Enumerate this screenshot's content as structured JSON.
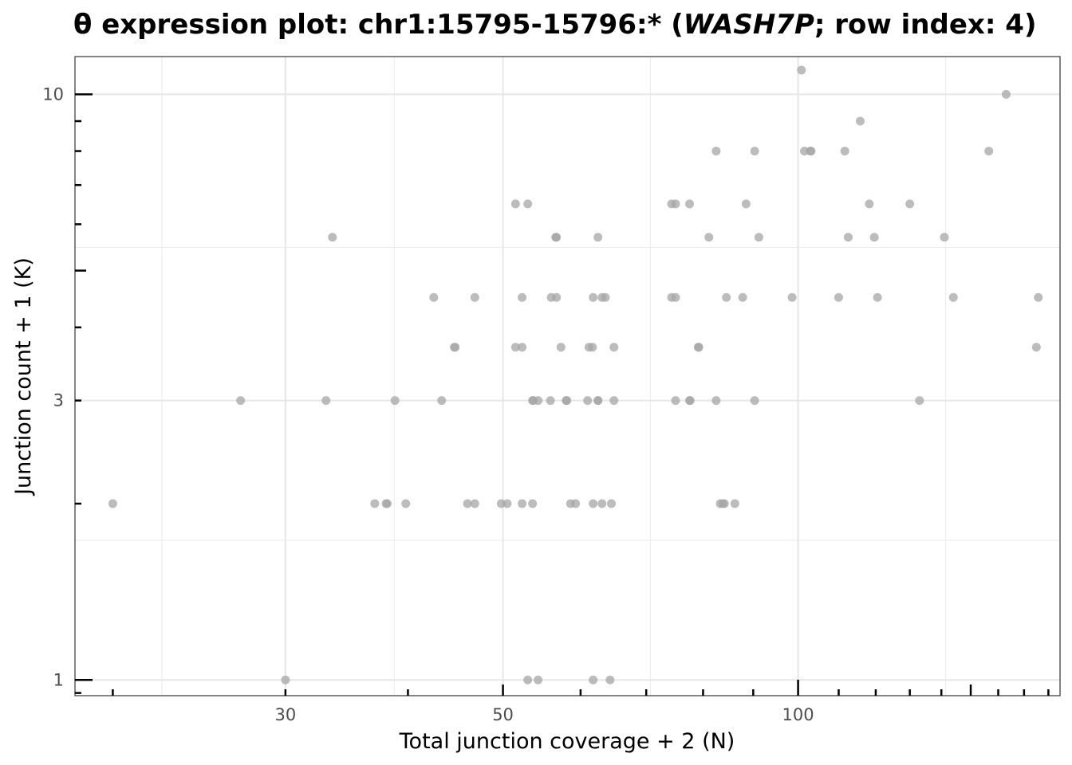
{
  "chart_data": {
    "type": "scatter",
    "title": {
      "prefix": "θ expression plot: chr1:15795-15796:* (",
      "gene": "WASH7P",
      "suffix": "; row index: 4)"
    },
    "xlabel": "Total junction coverage + 2 (N)",
    "ylabel": "Junction count + 1 (K)",
    "x_scale": "log",
    "y_scale": "log",
    "xlim": [
      18.3,
      185
    ],
    "ylim": [
      0.94,
      11.6
    ],
    "x_ticks": [
      30,
      50,
      100
    ],
    "x_tick_labels": [
      "30",
      "50",
      "100"
    ],
    "y_ticks": [
      1,
      3,
      10
    ],
    "y_tick_labels": [
      "1",
      "3",
      "10"
    ],
    "grid": true,
    "point_color": "#a6a6a6",
    "points": [
      [
        20,
        2
      ],
      [
        27,
        3
      ],
      [
        30,
        1
      ],
      [
        33,
        3
      ],
      [
        33.5,
        5.7
      ],
      [
        37,
        2
      ],
      [
        38,
        2
      ],
      [
        38.1,
        2
      ],
      [
        38.8,
        3
      ],
      [
        39.8,
        2
      ],
      [
        42.5,
        4.5
      ],
      [
        43.3,
        3
      ],
      [
        44.6,
        3.7
      ],
      [
        44.7,
        3.7
      ],
      [
        46,
        2
      ],
      [
        46.8,
        2
      ],
      [
        46.8,
        4.5
      ],
      [
        49.8,
        2
      ],
      [
        50.5,
        2
      ],
      [
        51.5,
        6.5
      ],
      [
        51.5,
        3.7
      ],
      [
        52.3,
        4.5
      ],
      [
        52.3,
        2
      ],
      [
        52.3,
        3.7
      ],
      [
        53,
        1
      ],
      [
        53,
        6.5
      ],
      [
        53.6,
        2
      ],
      [
        53.6,
        3
      ],
      [
        53.7,
        3
      ],
      [
        54.3,
        3
      ],
      [
        54.3,
        1
      ],
      [
        55.9,
        3
      ],
      [
        56,
        4.5
      ],
      [
        56.6,
        5.7
      ],
      [
        56.7,
        5.7
      ],
      [
        56.7,
        4.5
      ],
      [
        57.3,
        3.7
      ],
      [
        58,
        3
      ],
      [
        58.1,
        3
      ],
      [
        58.6,
        2
      ],
      [
        59.3,
        2
      ],
      [
        61,
        3
      ],
      [
        61.2,
        3.7
      ],
      [
        61.7,
        3.7
      ],
      [
        61.8,
        4.5
      ],
      [
        61.8,
        2
      ],
      [
        61.8,
        1
      ],
      [
        62.5,
        3
      ],
      [
        62.5,
        3
      ],
      [
        62.5,
        5.7
      ],
      [
        63.1,
        4.5
      ],
      [
        63.1,
        2
      ],
      [
        63.6,
        4.5
      ],
      [
        64.3,
        1
      ],
      [
        64.5,
        2
      ],
      [
        64.9,
        3.7
      ],
      [
        64.9,
        3
      ],
      [
        74.3,
        6.5
      ],
      [
        74.3,
        4.5
      ],
      [
        75,
        6.5
      ],
      [
        75,
        4.5
      ],
      [
        75,
        3
      ],
      [
        77.5,
        6.5
      ],
      [
        77.5,
        3
      ],
      [
        77.6,
        3
      ],
      [
        79.1,
        3.7
      ],
      [
        79.2,
        3.7
      ],
      [
        81.1,
        5.7
      ],
      [
        82.5,
        8
      ],
      [
        82.5,
        3
      ],
      [
        83.3,
        2
      ],
      [
        83.8,
        2
      ],
      [
        84.1,
        2
      ],
      [
        84.5,
        4.5
      ],
      [
        86.2,
        2
      ],
      [
        87.8,
        4.5
      ],
      [
        88.5,
        6.5
      ],
      [
        90.3,
        8
      ],
      [
        90.3,
        3
      ],
      [
        91.2,
        5.7
      ],
      [
        98.6,
        4.5
      ],
      [
        100.8,
        11
      ],
      [
        101.5,
        8
      ],
      [
        102.9,
        8
      ],
      [
        103.1,
        8
      ],
      [
        110,
        4.5
      ],
      [
        111.6,
        8
      ],
      [
        112.5,
        5.7
      ],
      [
        115.7,
        9
      ],
      [
        118.2,
        6.5
      ],
      [
        119.6,
        5.7
      ],
      [
        120.5,
        4.5
      ],
      [
        130,
        6.5
      ],
      [
        133,
        3
      ],
      [
        141,
        5.7
      ],
      [
        144,
        4.5
      ],
      [
        156.5,
        8
      ],
      [
        163,
        10
      ],
      [
        175,
        3.7
      ],
      [
        175.8,
        4.5
      ]
    ]
  }
}
